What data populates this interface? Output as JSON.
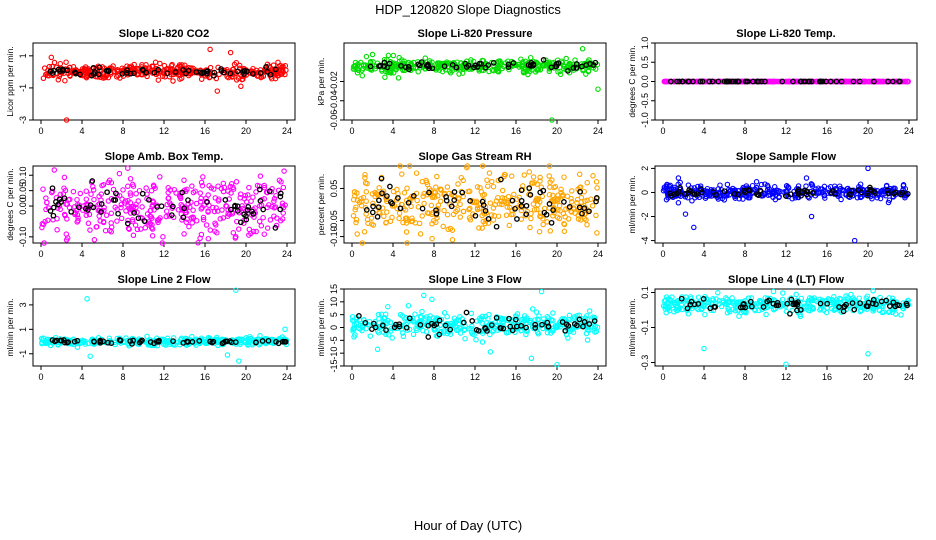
{
  "chart_data": {
    "type": "scatter",
    "title": "HDP_120820  Slope Diagnostics",
    "xlabel": "Hour of Day (UTC)",
    "overlay_color": "#000000",
    "panels": [
      {
        "title": "Slope Li-820 CO2",
        "ylabel": "Licor ppm per min.",
        "color": "#ff0000",
        "ylim": [
          -3,
          1.8
        ],
        "yticks": [
          -3,
          -1,
          1
        ],
        "ytick_labels": [
          "-3",
          "-1",
          "1"
        ],
        "xlim": [
          0,
          24
        ],
        "xticks": [
          0,
          4,
          8,
          12,
          16,
          20,
          24
        ],
        "xtick_labels": [
          "0",
          "4",
          "8",
          "12",
          "16",
          "20",
          "24"
        ],
        "center": 0,
        "spread": 0.22,
        "outliers": [
          [
            2.5,
            -3.0
          ],
          [
            16.5,
            1.4
          ],
          [
            18.5,
            1.2
          ],
          [
            17.2,
            -1.2
          ],
          [
            1.0,
            0.9
          ],
          [
            19.5,
            -0.9
          ]
        ]
      },
      {
        "title": "Slope Li-820 Pressure",
        "ylabel": "kPa per min.",
        "color": "#00dd00",
        "ylim": [
          -0.06,
          0.02
        ],
        "yticks": [
          -0.06,
          -0.04,
          -0.02
        ],
        "ytick_labels": [
          "-0.06",
          "-0.04",
          "-0.02"
        ],
        "xlim": [
          0,
          24
        ],
        "xticks": [
          0,
          4,
          8,
          12,
          16,
          20,
          24
        ],
        "xtick_labels": [
          "0",
          "4",
          "8",
          "12",
          "16",
          "20",
          "24"
        ],
        "center": -0.004,
        "spread": 0.0035,
        "outliers": [
          [
            19.5,
            -0.06
          ],
          [
            24.0,
            -0.028
          ],
          [
            2.0,
            0.008
          ],
          [
            22.5,
            0.014
          ],
          [
            1.0,
            -0.014
          ]
        ]
      },
      {
        "title": "Slope Li-820 Temp.",
        "ylabel": "degrees C per min.",
        "color": "#ff00ff",
        "ylim": [
          -1.0,
          1.0
        ],
        "yticks": [
          -1.0,
          -0.5,
          0.0,
          0.5,
          1.0
        ],
        "ytick_labels": [
          "-1.0",
          "-0.5",
          "0.0",
          "0.5",
          "1.0"
        ],
        "xlim": [
          0,
          24
        ],
        "xticks": [
          0,
          4,
          8,
          12,
          16,
          20,
          24
        ],
        "xtick_labels": [
          "0",
          "4",
          "8",
          "12",
          "16",
          "20",
          "24"
        ],
        "center": 0,
        "spread": 0.0,
        "outliers": []
      },
      {
        "title": "Slope Amb. Box Temp.",
        "ylabel": "degrees C per min.",
        "color": "#ff00ff",
        "ylim": [
          -0.12,
          0.13
        ],
        "yticks": [
          -0.1,
          0.0,
          0.05,
          0.1
        ],
        "ytick_labels": [
          "-0.10",
          "0.00",
          "0.05",
          "0.10"
        ],
        "xlim": [
          0,
          24
        ],
        "xticks": [
          0,
          4,
          8,
          12,
          16,
          20,
          24
        ],
        "xtick_labels": [
          "0",
          "4",
          "8",
          "12",
          "16",
          "20",
          "24"
        ],
        "center": 0,
        "spread": 0.05,
        "outliers": [
          [
            0.3,
            -0.12
          ],
          [
            19.0,
            -0.1
          ],
          [
            2.5,
            -0.11
          ]
        ]
      },
      {
        "title": "Slope Gas Stream RH",
        "ylabel": "percent per min.",
        "color": "#ffa500",
        "ylim": [
          -0.12,
          0.12
        ],
        "yticks": [
          -0.1,
          -0.05,
          0.05
        ],
        "ytick_labels": [
          "-0.10",
          "-0.05",
          "0.05"
        ],
        "xlim": [
          0,
          24
        ],
        "xticks": [
          0,
          4,
          8,
          12,
          16,
          20,
          24
        ],
        "xtick_labels": [
          "0",
          "4",
          "8",
          "12",
          "16",
          "20",
          "24"
        ],
        "center": 0,
        "spread": 0.045,
        "outliers": [
          [
            11.2,
            0.115
          ],
          [
            1.0,
            -0.12
          ],
          [
            9.8,
            -0.11
          ]
        ]
      },
      {
        "title": "Slope Sample Flow",
        "ylabel": "ml/min per min.",
        "color": "#0000ff",
        "ylim": [
          -4.2,
          2.2
        ],
        "yticks": [
          -4,
          -2,
          0,
          2
        ],
        "ytick_labels": [
          "-4",
          "-2",
          "0",
          "2"
        ],
        "xlim": [
          0,
          24
        ],
        "xticks": [
          0,
          4,
          8,
          12,
          16,
          20,
          24
        ],
        "xtick_labels": [
          "0",
          "4",
          "8",
          "12",
          "16",
          "20",
          "24"
        ],
        "center": 0,
        "spread": 0.3,
        "outliers": [
          [
            3.0,
            -2.9
          ],
          [
            2.2,
            -1.8
          ],
          [
            20.0,
            2.0
          ],
          [
            18.7,
            -4.0
          ],
          [
            14.5,
            -2.0
          ],
          [
            1.5,
            1.2
          ],
          [
            14.0,
            1.2
          ]
        ]
      },
      {
        "title": "Slope Line 2 Flow",
        "ylabel": "ml/min per min.",
        "color": "#00ffff",
        "ylim": [
          -2,
          4.3
        ],
        "yticks": [
          -1,
          1,
          3
        ],
        "ytick_labels": [
          "-1",
          "1",
          "3"
        ],
        "xlim": [
          0,
          24
        ],
        "xticks": [
          0,
          4,
          8,
          12,
          16,
          20,
          24
        ],
        "xtick_labels": [
          "0",
          "4",
          "8",
          "12",
          "16",
          "20",
          "24"
        ],
        "center": 0,
        "spread": 0.15,
        "outliers": [
          [
            4.5,
            3.5
          ],
          [
            4.8,
            -1.2
          ],
          [
            19.0,
            4.2
          ],
          [
            19.3,
            -1.6
          ],
          [
            18.2,
            -1.1
          ],
          [
            23.8,
            1.0
          ]
        ]
      },
      {
        "title": "Slope Line 3 Flow",
        "ylabel": "ml/min per min.",
        "color": "#00ffff",
        "ylim": [
          -15,
          15
        ],
        "yticks": [
          -15,
          -10,
          -5,
          0,
          5,
          10,
          15
        ],
        "ytick_labels": [
          "-15",
          "-10",
          "-5",
          "0",
          "5",
          "10",
          "15"
        ],
        "xlim": [
          0,
          24
        ],
        "xticks": [
          0,
          4,
          8,
          12,
          16,
          20,
          24
        ],
        "xtick_labels": [
          "0",
          "4",
          "8",
          "12",
          "16",
          "20",
          "24"
        ],
        "center": 1,
        "spread": 2.2,
        "outliers": [
          [
            7.0,
            12.5
          ],
          [
            18.5,
            14.0
          ],
          [
            7.8,
            11.0
          ],
          [
            20.0,
            -14.5
          ],
          [
            2.5,
            -8.5
          ],
          [
            13.5,
            -9.5
          ],
          [
            17.5,
            -12.0
          ],
          [
            5.5,
            8.5
          ]
        ]
      },
      {
        "title": "Slope Line 4 (LT) Flow",
        "ylabel": "ml/min per min.",
        "color": "#00ffff",
        "ylim": [
          -0.32,
          0.12
        ],
        "yticks": [
          -0.3,
          -0.1,
          0.1
        ],
        "ytick_labels": [
          "-0.3",
          "-0.1",
          "0.1"
        ],
        "xlim": [
          0,
          24
        ],
        "xticks": [
          0,
          4,
          8,
          12,
          16,
          20,
          24
        ],
        "xtick_labels": [
          "0",
          "4",
          "8",
          "12",
          "16",
          "20",
          "24"
        ],
        "center": 0.03,
        "spread": 0.025,
        "outliers": [
          [
            4.0,
            -0.22
          ],
          [
            12.0,
            -0.31
          ],
          [
            20.0,
            -0.25
          ],
          [
            20.5,
            0.11
          ]
        ]
      }
    ]
  }
}
